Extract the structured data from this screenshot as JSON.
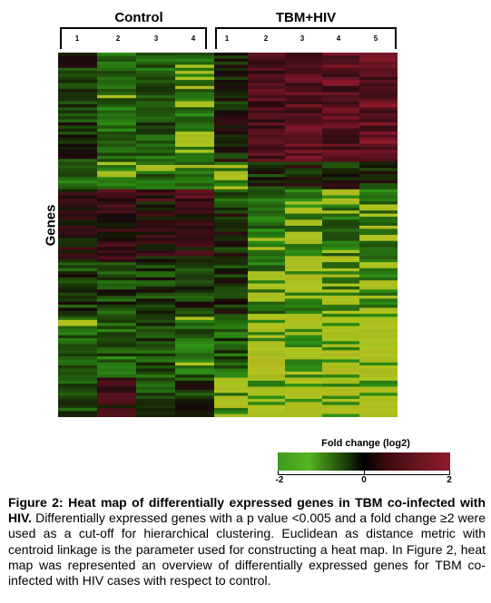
{
  "chart_data": {
    "type": "heatmap",
    "groups": [
      {
        "name": "Control",
        "samples": [
          "1",
          "2",
          "3",
          "4"
        ]
      },
      {
        "name": "TBM+HIV",
        "samples": [
          "1",
          "2",
          "3",
          "4",
          "5"
        ]
      }
    ],
    "ylabel": "Genes",
    "colorbar": {
      "title": "Fold change (log2)",
      "min": -2,
      "max": 2,
      "ticks": [
        "-2",
        "0",
        "2"
      ],
      "low_color": "#4aa81f",
      "mid_color": "#000000",
      "high_color": "#8f1a2c"
    },
    "clusters_log2fc": [
      {
        "rows": 36,
        "control": [
          -0.4,
          -1.2,
          -0.8,
          -1.4
        ],
        "tbm_hiv": [
          -0.2,
          0.9,
          1.0,
          1.1,
          1.2
        ]
      },
      {
        "rows": 9,
        "control": [
          -1.0,
          -1.3,
          -1.1,
          -1.3
        ],
        "tbm_hiv": [
          -1.5,
          -0.3,
          -0.1,
          -0.2,
          -0.3
        ]
      },
      {
        "rows": 4,
        "control": [
          0.5,
          0.8,
          0.6,
          0.7
        ],
        "tbm_hiv": [
          -0.6,
          -1.3,
          -1.4,
          -1.4,
          -1.4
        ]
      },
      {
        "rows": 20,
        "control": [
          0.2,
          0.4,
          0.2,
          0.3
        ],
        "tbm_hiv": [
          -0.2,
          -1.3,
          -1.5,
          -1.3,
          -1.4
        ]
      },
      {
        "rows": 18,
        "control": [
          -0.5,
          -0.6,
          -0.4,
          -0.5
        ],
        "tbm_hiv": [
          -0.3,
          -1.3,
          -1.6,
          -1.5,
          -1.6
        ]
      },
      {
        "rows": 20,
        "control": [
          -1.1,
          -0.9,
          -0.7,
          -1.0
        ],
        "tbm_hiv": [
          -0.8,
          -1.9,
          -1.9,
          -1.9,
          -1.9
        ]
      },
      {
        "rows": 13,
        "control": [
          -0.8,
          0.5,
          -0.6,
          -0.4
        ],
        "tbm_hiv": [
          -1.5,
          -1.9,
          -1.9,
          -1.9,
          -1.9
        ]
      }
    ]
  },
  "caption": {
    "lead": "Figure 2: Heat map of differentially expressed genes in TBM co-infected with HIV.",
    "body": " Differentially expressed genes with a p value <0.005 and a fold change ≥2 were used as a cut-off for hierarchical clustering. Euclidean as distance metric with centroid linkage is the parameter used for constructing a heat map. In Figure 2, heat map was represented an overview of differentially expressed genes for TBM co-infected with HIV cases with respect to control."
  }
}
